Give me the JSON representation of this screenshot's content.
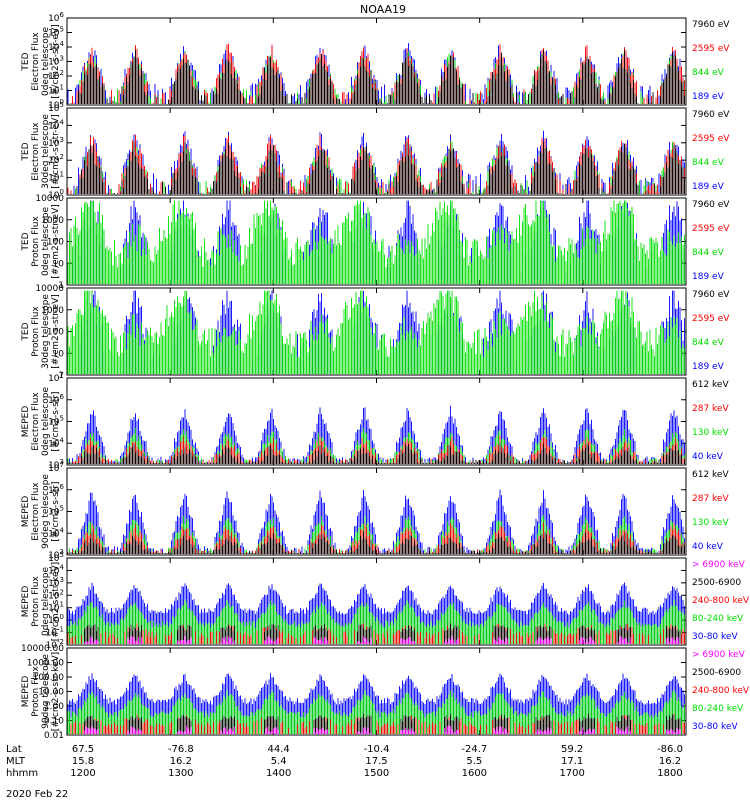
{
  "title": "NOAA19",
  "date": "2020 Feb 22",
  "colors": {
    "black": "#000000",
    "red": "#ff0000",
    "green": "#00e000",
    "blue": "#0000ff",
    "magenta": "#ff00ff"
  },
  "footer": {
    "row_labels": [
      "Lat",
      "MLT",
      "hhmm"
    ],
    "columns": [
      {
        "lat": "67.5",
        "mlt": "15.8",
        "hhmm": "1200"
      },
      {
        "lat": "-76.8",
        "mlt": "16.2",
        "hhmm": "1300"
      },
      {
        "lat": "44.4",
        "mlt": "5.4",
        "hhmm": "1400"
      },
      {
        "lat": "-10.4",
        "mlt": "17.5",
        "hhmm": "1500"
      },
      {
        "lat": "-24.7",
        "mlt": "5.5",
        "hhmm": "1600"
      },
      {
        "lat": "59.2",
        "mlt": "17.1",
        "hhmm": "1700"
      },
      {
        "lat": "-86.0",
        "mlt": "16.2",
        "hhmm": "1800"
      }
    ]
  },
  "chart_data": [
    {
      "type": "line",
      "ylabel": [
        "TED",
        "Electron Flux",
        "0deg telescope",
        "[#/cm2-s-str-eV]"
      ],
      "scale": "log",
      "ylim": [
        1,
        1000000
      ],
      "tick_labels": [
        "10^0",
        "10^1",
        "10^2",
        "10^3",
        "10^4",
        "10^5",
        "10^6"
      ],
      "x_range_hhmm": [
        "1200",
        "1800"
      ],
      "series": [
        {
          "name": "7960 eV",
          "color": "black",
          "values": []
        },
        {
          "name": "2595 eV",
          "color": "red",
          "values": []
        },
        {
          "name": "844 eV",
          "color": "green",
          "values": []
        },
        {
          "name": "189 eV",
          "color": "blue",
          "values": []
        }
      ]
    },
    {
      "type": "line",
      "ylabel": [
        "TED",
        "Electron Flux",
        "30deg telescope",
        "[#/cm2-s-str-eV]"
      ],
      "scale": "log",
      "ylim": [
        1,
        100000
      ],
      "tick_labels": [
        "10^0",
        "10^1",
        "10^2",
        "10^3",
        "10^4",
        "10^5"
      ],
      "x_range_hhmm": [
        "1200",
        "1800"
      ],
      "series": [
        {
          "name": "7960 eV",
          "color": "black",
          "values": []
        },
        {
          "name": "2595 eV",
          "color": "red",
          "values": []
        },
        {
          "name": "844 eV",
          "color": "green",
          "values": []
        },
        {
          "name": "189 eV",
          "color": "blue",
          "values": []
        }
      ]
    },
    {
      "type": "line",
      "ylabel": [
        "TED",
        "Proton Flux",
        "0deg telescope",
        "[#/cm2-s-str-eV]"
      ],
      "scale": "log",
      "ylim": [
        1,
        10000
      ],
      "tick_labels": [
        "1",
        "10",
        "100",
        "1000",
        "10000"
      ],
      "x_range_hhmm": [
        "1200",
        "1800"
      ],
      "series": [
        {
          "name": "7960 eV",
          "color": "black",
          "values": []
        },
        {
          "name": "2595 eV",
          "color": "red",
          "values": []
        },
        {
          "name": "844 eV",
          "color": "green",
          "values": []
        },
        {
          "name": "189 eV",
          "color": "blue",
          "values": []
        }
      ]
    },
    {
      "type": "line",
      "ylabel": [
        "TED",
        "Proton Flux",
        "30deg telescope",
        "[#/cm2-s-str-eV]"
      ],
      "scale": "log",
      "ylim": [
        1,
        10000
      ],
      "tick_labels": [
        "1",
        "10",
        "100",
        "1000",
        "10000"
      ],
      "x_range_hhmm": [
        "1200",
        "1800"
      ],
      "series": [
        {
          "name": "7960 eV",
          "color": "black",
          "values": []
        },
        {
          "name": "2595 eV",
          "color": "red",
          "values": []
        },
        {
          "name": "844 eV",
          "color": "green",
          "values": []
        },
        {
          "name": "189 eV",
          "color": "blue",
          "values": []
        }
      ]
    },
    {
      "type": "line",
      "ylabel": [
        "MEPED",
        "Electron Flux",
        "0deg telescope",
        "[#/cm2-s-str]"
      ],
      "scale": "log",
      "ylim": [
        1000,
        10000000
      ],
      "tick_labels": [
        "10^3",
        "10^4",
        "10^5",
        "10^6",
        "10^7"
      ],
      "x_range_hhmm": [
        "1200",
        "1800"
      ],
      "series": [
        {
          "name": "612 keV",
          "color": "black",
          "values": []
        },
        {
          "name": "287 keV",
          "color": "red",
          "values": []
        },
        {
          "name": "130 keV",
          "color": "green",
          "values": []
        },
        {
          "name": "40 keV",
          "color": "blue",
          "values": []
        }
      ]
    },
    {
      "type": "line",
      "ylabel": [
        "MEPED",
        "Electron Flux",
        "90deg telescope",
        "[#/cm2-s-str]"
      ],
      "scale": "log",
      "ylim": [
        1000,
        10000000
      ],
      "tick_labels": [
        "10^3",
        "10^4",
        "10^5",
        "10^6",
        "10^7"
      ],
      "x_range_hhmm": [
        "1200",
        "1800"
      ],
      "series": [
        {
          "name": "612 keV",
          "color": "black",
          "values": []
        },
        {
          "name": "287 keV",
          "color": "red",
          "values": []
        },
        {
          "name": "130 keV",
          "color": "green",
          "values": []
        },
        {
          "name": "40 keV",
          "color": "blue",
          "values": []
        }
      ]
    },
    {
      "type": "line",
      "ylabel": [
        "MEPED",
        "Proton Flux",
        "0deg telescope",
        "[#/cm2-s-str-keV]"
      ],
      "scale": "log",
      "ylim": [
        0.01,
        100000
      ],
      "tick_labels": [
        "10^-2",
        "10^-1",
        "10^0",
        "10^1",
        "10^2",
        "10^3",
        "10^4",
        "10^5"
      ],
      "x_range_hhmm": [
        "1200",
        "1800"
      ],
      "series": [
        {
          "name": "> 6900 keV",
          "color": "magenta",
          "values": []
        },
        {
          "name": "2500-6900",
          "color": "black",
          "values": []
        },
        {
          "name": "240-800 keV",
          "color": "red",
          "values": []
        },
        {
          "name": "80-240 keV",
          "color": "green",
          "values": []
        },
        {
          "name": "30-80 keV",
          "color": "blue",
          "values": []
        }
      ]
    },
    {
      "type": "line",
      "ylabel": [
        "MEPED",
        "Proton Flux",
        "90deg telescope",
        "[#/cm2-s-str-keV]"
      ],
      "scale": "log",
      "ylim": [
        0.01,
        10000
      ],
      "tick_labels": [
        "0.01",
        "0.10",
        "1.00",
        "10.00",
        "100.00",
        "1000.00",
        "10000.00"
      ],
      "x_range_hhmm": [
        "1200",
        "1800"
      ],
      "series": [
        {
          "name": "> 6900 keV",
          "color": "magenta",
          "values": []
        },
        {
          "name": "2500-6900",
          "color": "black",
          "values": []
        },
        {
          "name": "240-800 keV",
          "color": "red",
          "values": []
        },
        {
          "name": "80-240 keV",
          "color": "green",
          "values": []
        },
        {
          "name": "30-80 keV",
          "color": "blue",
          "values": []
        }
      ]
    }
  ]
}
